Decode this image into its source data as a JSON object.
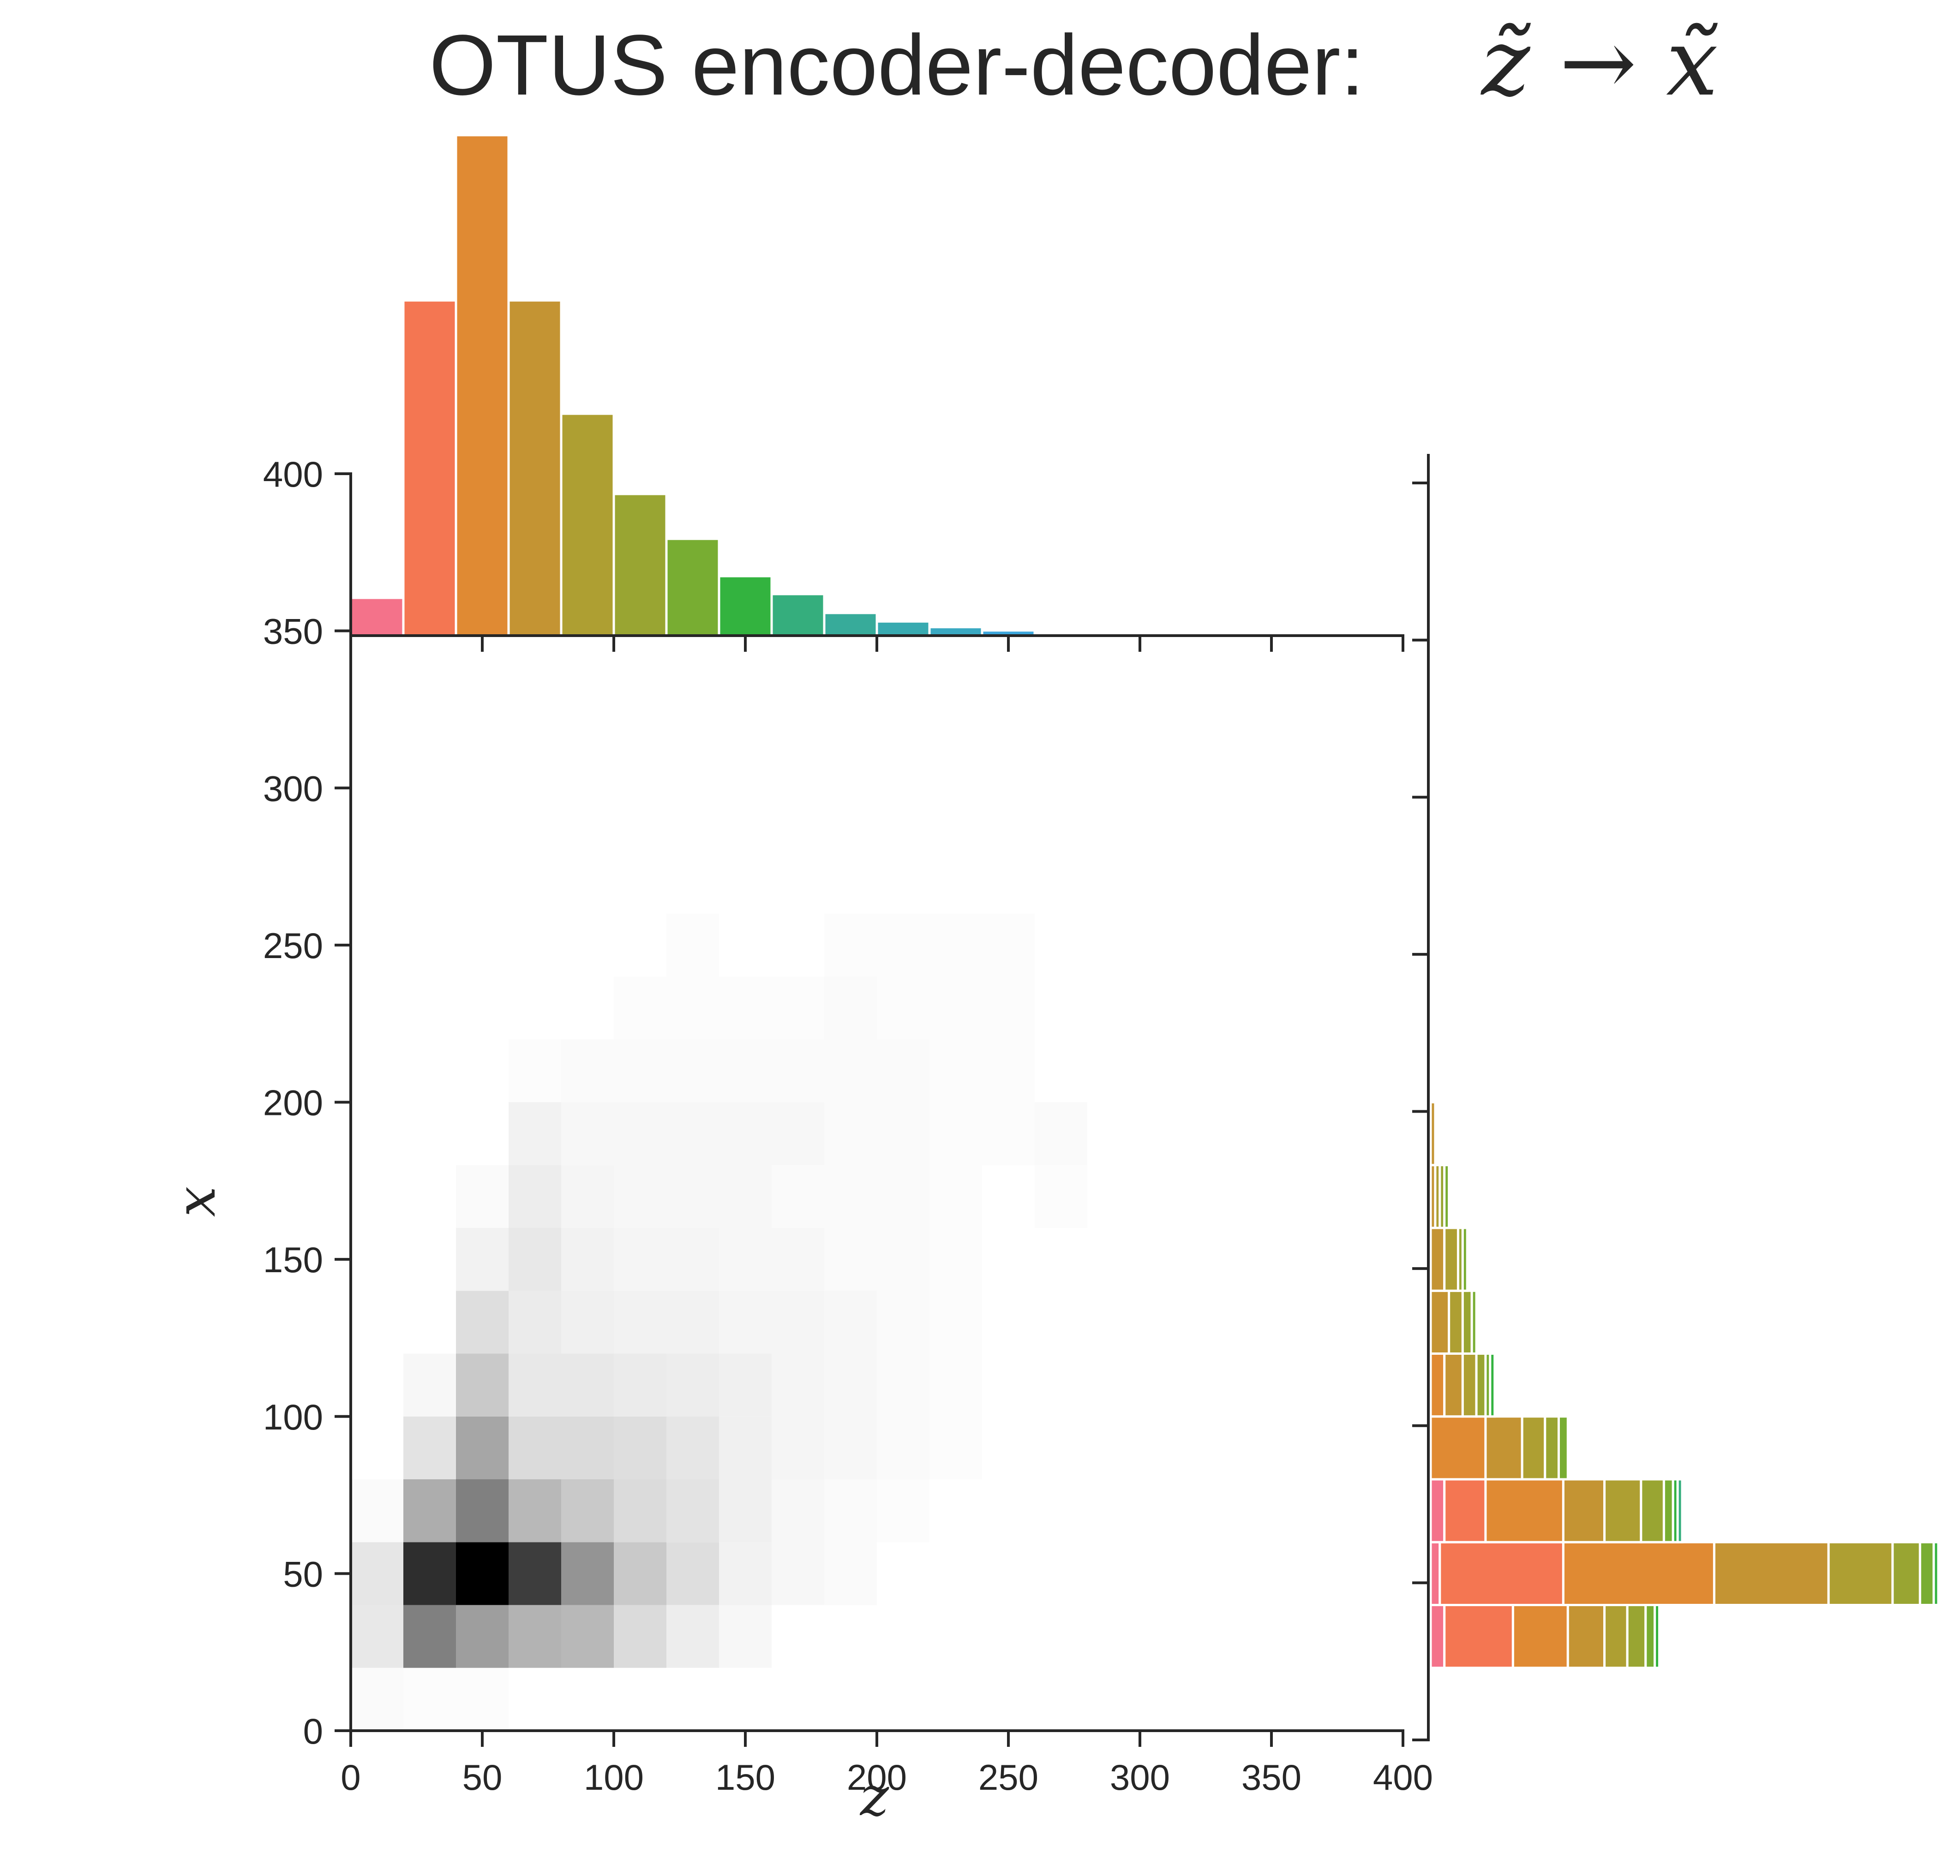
{
  "title": {
    "text": "OTUS encoder-decoder:",
    "math": "z̃ → x̃"
  },
  "colors": {
    "axis": "#262626",
    "heat_max": "#000000",
    "heat_min": "#ffffff",
    "bar_edge": "#ffffff",
    "palette": [
      "#f4728a",
      "#f47652",
      "#e08a33",
      "#c49433",
      "#ae9f32",
      "#99a532",
      "#78ad32",
      "#33b33f",
      "#35ae7d",
      "#37ab9a",
      "#38aab0",
      "#3aa9c2",
      "#3ca6dc",
      "#6e9af0"
    ]
  },
  "chart_data": [
    {
      "type": "heatmap",
      "xlabel": "z",
      "ylabel": "x",
      "xlim": [
        0,
        400
      ],
      "ylim": [
        0,
        400
      ],
      "xticks": [
        "0",
        "50",
        "100",
        "150",
        "200",
        "250",
        "300",
        "350",
        "400"
      ],
      "yticks": [
        "0",
        "50",
        "100",
        "150",
        "200",
        "250",
        "300",
        "350",
        "400"
      ],
      "bin_size": 20,
      "x_bins": [
        0,
        20,
        40,
        60,
        80,
        100,
        120,
        140,
        160,
        180,
        200,
        220,
        240,
        260
      ],
      "y_bins": [
        0,
        20,
        40,
        60,
        80,
        100,
        120,
        140,
        160,
        180,
        200,
        220,
        240
      ],
      "counts": [
        [
          2,
          1,
          1,
          0,
          0,
          0,
          0,
          0,
          0,
          0,
          0,
          0,
          0,
          0
        ],
        [
          9,
          50,
          38,
          30,
          28,
          14,
          7,
          3,
          0,
          0,
          0,
          0,
          0,
          0
        ],
        [
          10,
          82,
          100,
          76,
          42,
          21,
          13,
          5,
          3,
          2,
          0,
          0,
          0,
          0
        ],
        [
          2,
          32,
          50,
          28,
          21,
          14,
          11,
          6,
          3,
          2,
          1,
          0,
          0,
          0
        ],
        [
          0,
          11,
          35,
          14,
          14,
          13,
          10,
          6,
          4,
          3,
          2,
          1,
          0,
          0
        ],
        [
          0,
          3,
          21,
          9,
          9,
          8,
          7,
          6,
          4,
          3,
          2,
          1,
          0,
          0
        ],
        [
          0,
          0,
          13,
          8,
          6,
          5,
          5,
          4,
          4,
          3,
          2,
          1,
          0,
          0
        ],
        [
          0,
          0,
          5,
          9,
          5,
          4,
          4,
          3,
          3,
          2,
          2,
          1,
          0,
          0
        ],
        [
          0,
          0,
          2,
          7,
          4,
          3,
          3,
          3,
          2,
          2,
          2,
          1,
          0,
          1
        ],
        [
          0,
          0,
          0,
          5,
          3,
          3,
          3,
          3,
          3,
          2,
          2,
          1,
          1,
          2
        ],
        [
          0,
          0,
          0,
          1,
          2,
          2,
          2,
          2,
          2,
          2,
          2,
          1,
          1,
          0
        ],
        [
          0,
          0,
          0,
          0,
          0,
          1,
          1,
          1,
          1,
          2,
          1,
          1,
          1,
          0
        ],
        [
          0,
          0,
          0,
          0,
          0,
          0,
          1,
          0,
          0,
          1,
          1,
          1,
          1,
          0
        ]
      ]
    },
    {
      "type": "bar",
      "orientation": "vertical",
      "categories": [
        "0-20",
        "20-40",
        "40-60",
        "60-80",
        "80-100",
        "100-120",
        "120-140",
        "140-160",
        "160-180",
        "180-200",
        "200-220",
        "220-240",
        "240-260",
        "260-280"
      ],
      "values": [
        8,
        71,
        106,
        71,
        47,
        30,
        20.5,
        12.6,
        8.8,
        4.8,
        3.0,
        1.8,
        1.1,
        0.5
      ],
      "xlim": [
        0,
        400
      ],
      "ylim": [
        0,
        106
      ]
    },
    {
      "type": "bar",
      "orientation": "horizontal",
      "stacked": true,
      "categories": [
        "20-40",
        "40-60",
        "60-80",
        "80-100",
        "100-120",
        "120-140",
        "140-160",
        "160-180",
        "180-200"
      ],
      "series": [
        {
          "values": [
            3,
            2,
            3,
            0,
            0,
            0,
            0,
            0,
            0
          ]
        },
        {
          "values": [
            15,
            27,
            9,
            0,
            0,
            0,
            0,
            0,
            0
          ]
        },
        {
          "values": [
            12,
            33,
            17,
            12,
            3,
            0,
            0,
            0,
            0
          ]
        },
        {
          "values": [
            8,
            25,
            9,
            8,
            4,
            4,
            3,
            1,
            1
          ]
        },
        {
          "values": [
            5,
            14,
            8,
            5,
            3,
            3,
            3,
            1,
            0
          ]
        },
        {
          "values": [
            4,
            6,
            5,
            3,
            2,
            2,
            1,
            1,
            0
          ]
        },
        {
          "values": [
            2,
            3,
            2,
            2,
            1,
            1,
            1,
            1,
            0
          ]
        },
        {
          "values": [
            1,
            1,
            1,
            0,
            1,
            0,
            0,
            0,
            0
          ]
        },
        {
          "values": [
            0,
            0,
            1,
            0,
            0,
            0,
            0,
            0,
            0
          ]
        }
      ],
      "ylim": [
        0,
        400
      ]
    }
  ]
}
